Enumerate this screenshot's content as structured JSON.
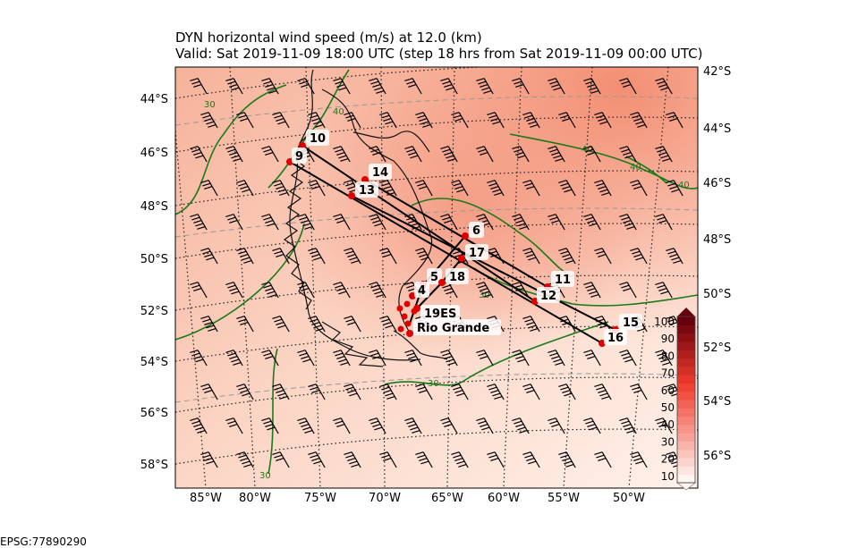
{
  "title_line1": "DYN horizontal wind speed (m/s) at 12.0 (km)",
  "title_line2": "Valid: Sat 2019-11-09 18:00 UTC (step 18 hrs from Sat 2019-11-09 00:00 UTC)",
  "epsg": "EPSG:77890290",
  "left_lat_labels": [
    "44°S",
    "46°S",
    "48°S",
    "50°S",
    "52°S",
    "54°S",
    "56°S",
    "58°S"
  ],
  "right_lat_labels": [
    "42°S",
    "44°S",
    "46°S",
    "48°S",
    "50°S",
    "52°S",
    "54°S",
    "56°S"
  ],
  "lon_labels": [
    "85°W",
    "80°W",
    "75°W",
    "70°W",
    "65°W",
    "60°W",
    "55°W",
    "50°W"
  ],
  "colorbar": {
    "ticks": [
      "100",
      "90",
      "80",
      "70",
      "60",
      "50",
      "40",
      "30",
      "20",
      "10"
    ],
    "low_color": "#fff5f0",
    "high_color": "#67000d"
  },
  "contour_labels": [
    "30",
    "40",
    "40",
    "40",
    "30",
    "30",
    "30",
    "40"
  ],
  "points": [
    {
      "label": "10"
    },
    {
      "label": "9"
    },
    {
      "label": "14"
    },
    {
      "label": "13"
    },
    {
      "label": "6"
    },
    {
      "label": "17"
    },
    {
      "label": "5"
    },
    {
      "label": "18"
    },
    {
      "label": "11"
    },
    {
      "label": "12"
    },
    {
      "label": "4"
    },
    {
      "label": "19ES"
    },
    {
      "label": "Rio Grande"
    },
    {
      "label": "15"
    },
    {
      "label": "16"
    }
  ],
  "colors": {
    "contour": "#1a7a1a",
    "marker": "#e00000",
    "track": "#000000"
  }
}
